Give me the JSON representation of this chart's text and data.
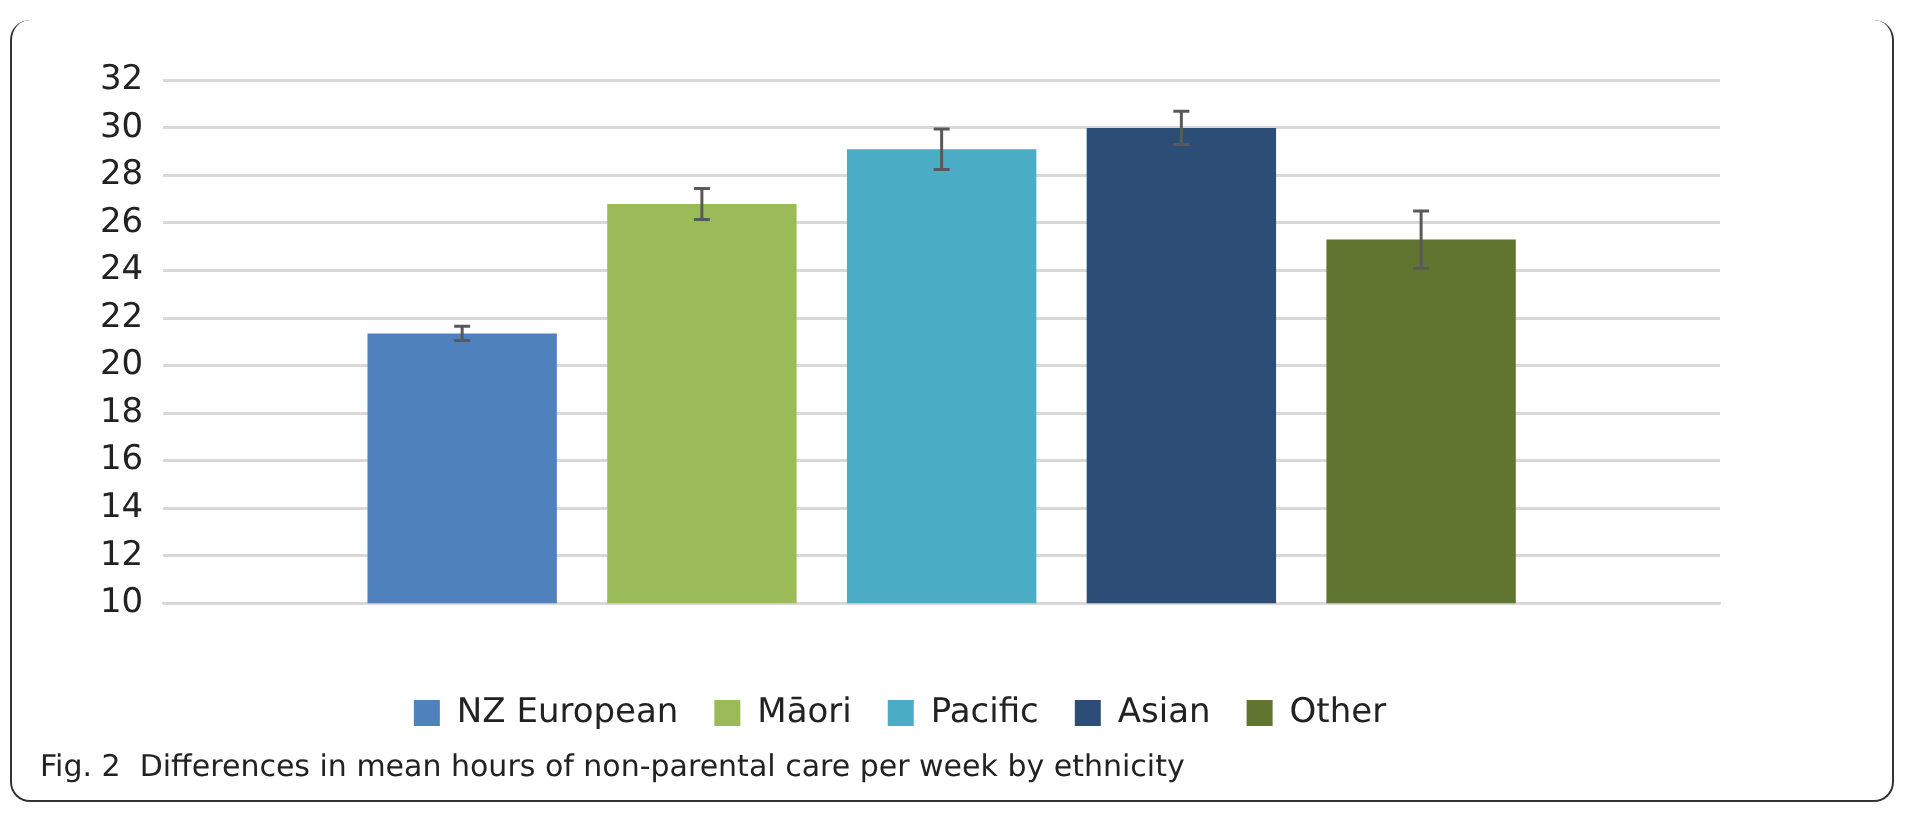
{
  "chart_data": {
    "type": "bar",
    "categories": [
      null
    ],
    "series": [
      {
        "name": "NZ European",
        "color": "#4f81bd",
        "values": [
          21.35
        ],
        "errors": [
          0.3
        ]
      },
      {
        "name": "Māori",
        "color": "#9bbb59",
        "values": [
          26.8
        ],
        "errors": [
          0.65
        ]
      },
      {
        "name": "Pacific",
        "color": "#4bacc6",
        "values": [
          29.1
        ],
        "errors": [
          0.85
        ]
      },
      {
        "name": "Asian",
        "color": "#2c4d75",
        "values": [
          30.0
        ],
        "errors": [
          0.7
        ]
      },
      {
        "name": "Other",
        "color": "#607530",
        "values": [
          25.3
        ],
        "errors": [
          1.2
        ]
      }
    ],
    "ylim": [
      10,
      32
    ],
    "yticks": [
      10,
      12,
      14,
      16,
      18,
      20,
      22,
      24,
      26,
      28,
      30,
      32
    ],
    "grid": "y",
    "legend": "bottom",
    "annotations": [
      "Fig. 2  Differences in mean hours of non-parental care per week by ethnicity"
    ]
  }
}
